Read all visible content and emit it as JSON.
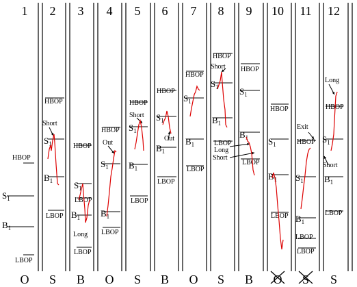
{
  "columns": [
    {
      "number": "1",
      "bottom": "O",
      "labels": [
        {
          "kind": "level",
          "text": "HBOP",
          "sub": ""
        },
        {
          "kind": "level",
          "text": "S",
          "sub": "1"
        },
        {
          "kind": "level",
          "text": "B",
          "sub": "1"
        },
        {
          "kind": "level",
          "text": "LBOP",
          "sub": ""
        }
      ]
    },
    {
      "number": "2",
      "bottom": "S",
      "labels": [
        {
          "kind": "level",
          "text": "HBOP",
          "sub": ""
        },
        {
          "kind": "annotation",
          "text": "Short",
          "sub": ""
        },
        {
          "kind": "level",
          "text": "S",
          "sub": "1"
        },
        {
          "kind": "level",
          "text": "B",
          "sub": "1"
        },
        {
          "kind": "level",
          "text": "LBOP",
          "sub": ""
        }
      ]
    },
    {
      "number": "3",
      "bottom": "B",
      "labels": [
        {
          "kind": "level",
          "text": "HBOP",
          "sub": ""
        },
        {
          "kind": "level",
          "text": "S",
          "sub": "1"
        },
        {
          "kind": "level",
          "text": "LBOP",
          "sub": ""
        },
        {
          "kind": "level",
          "text": "B",
          "sub": "1"
        },
        {
          "kind": "annotation",
          "text": "Long",
          "sub": ""
        },
        {
          "kind": "level",
          "text": "LBOP",
          "sub": ""
        }
      ]
    },
    {
      "number": "4",
      "bottom": "O",
      "labels": [
        {
          "kind": "level",
          "text": "HBOP",
          "sub": ""
        },
        {
          "kind": "annotation",
          "text": "Out",
          "sub": ""
        },
        {
          "kind": "level",
          "text": "S",
          "sub": "1"
        },
        {
          "kind": "level",
          "text": "B",
          "sub": "1"
        },
        {
          "kind": "level",
          "text": "LBOP",
          "sub": ""
        }
      ]
    },
    {
      "number": "5",
      "bottom": "S",
      "labels": [
        {
          "kind": "level",
          "text": "HBOP",
          "sub": ""
        },
        {
          "kind": "annotation",
          "text": "Short",
          "sub": ""
        },
        {
          "kind": "level",
          "text": "S",
          "sub": "1"
        },
        {
          "kind": "level",
          "text": "B",
          "sub": "1"
        },
        {
          "kind": "level",
          "text": "LBOP",
          "sub": ""
        }
      ]
    },
    {
      "number": "6",
      "bottom": "B",
      "labels": [
        {
          "kind": "level",
          "text": "HBOP",
          "sub": ""
        },
        {
          "kind": "level",
          "text": "S",
          "sub": "1"
        },
        {
          "kind": "annotation",
          "text": "Out",
          "sub": ""
        },
        {
          "kind": "level",
          "text": "B",
          "sub": "1"
        },
        {
          "kind": "level",
          "text": "LBOP",
          "sub": ""
        }
      ]
    },
    {
      "number": "7",
      "bottom": "O",
      "labels": [
        {
          "kind": "level",
          "text": "HBOP",
          "sub": ""
        },
        {
          "kind": "level",
          "text": "S",
          "sub": "1"
        },
        {
          "kind": "level",
          "text": "B",
          "sub": "1"
        },
        {
          "kind": "level",
          "text": "LBOP",
          "sub": ""
        }
      ]
    },
    {
      "number": "8",
      "bottom": "S",
      "labels": [
        {
          "kind": "level",
          "text": "HBOP",
          "sub": ""
        },
        {
          "kind": "annotation",
          "text": "Short",
          "sub": ""
        },
        {
          "kind": "level",
          "text": "S",
          "sub": "1"
        },
        {
          "kind": "level",
          "text": "B",
          "sub": "1"
        },
        {
          "kind": "level",
          "text": "LBOP",
          "sub": ""
        },
        {
          "kind": "annotation",
          "text": "Long",
          "sub": ""
        },
        {
          "kind": "annotation",
          "text": "Short",
          "sub": ""
        }
      ]
    },
    {
      "number": "9",
      "bottom": "B",
      "labels": [
        {
          "kind": "level",
          "text": "HBOP",
          "sub": ""
        },
        {
          "kind": "level",
          "text": "S",
          "sub": "1"
        },
        {
          "kind": "level",
          "text": "B",
          "sub": "1"
        },
        {
          "kind": "level",
          "text": "LBOP",
          "sub": ""
        }
      ]
    },
    {
      "number": "10",
      "bottom": "O",
      "crossed": true,
      "labels": [
        {
          "kind": "level",
          "text": "HBOP",
          "sub": ""
        },
        {
          "kind": "level",
          "text": "S",
          "sub": "1"
        },
        {
          "kind": "level",
          "text": "B",
          "sub": "1"
        },
        {
          "kind": "level",
          "text": "LBOP",
          "sub": ""
        }
      ]
    },
    {
      "number": "11",
      "bottom": "S",
      "crossed": true,
      "labels": [
        {
          "kind": "annotation",
          "text": "Exit",
          "sub": ""
        },
        {
          "kind": "level",
          "text": "HBOP",
          "sub": ""
        },
        {
          "kind": "level",
          "text": "S",
          "sub": "1"
        },
        {
          "kind": "level",
          "text": "B",
          "sub": "1"
        },
        {
          "kind": "level",
          "text": "LBOP",
          "sub": ""
        },
        {
          "kind": "level",
          "text": "LBOP",
          "sub": ""
        }
      ]
    },
    {
      "number": "12",
      "bottom": "S",
      "labels": [
        {
          "kind": "annotation",
          "text": "Long",
          "sub": ""
        },
        {
          "kind": "level",
          "text": "HBOP",
          "sub": ""
        },
        {
          "kind": "level",
          "text": "S",
          "sub": "1"
        },
        {
          "kind": "annotation",
          "text": "Short",
          "sub": ""
        },
        {
          "kind": "level",
          "text": "B",
          "sub": "1"
        },
        {
          "kind": "level",
          "text": "LBOP",
          "sub": ""
        }
      ]
    }
  ],
  "colors": {
    "line": "#000000",
    "price": "#dd0000",
    "background": "#ffffff"
  }
}
